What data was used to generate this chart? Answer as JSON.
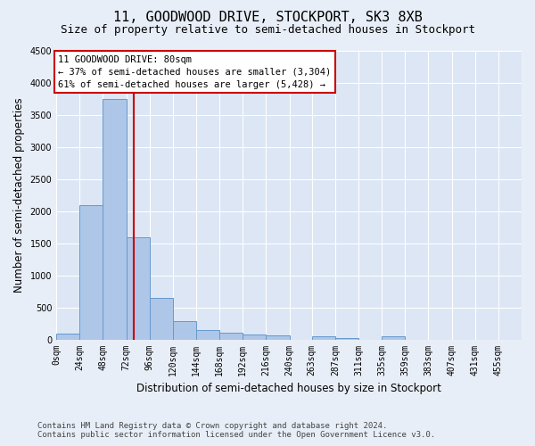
{
  "title": "11, GOODWOOD DRIVE, STOCKPORT, SK3 8XB",
  "subtitle": "Size of property relative to semi-detached houses in Stockport",
  "xlabel": "Distribution of semi-detached houses by size in Stockport",
  "ylabel": "Number of semi-detached properties",
  "footer_line1": "Contains HM Land Registry data © Crown copyright and database right 2024.",
  "footer_line2": "Contains public sector information licensed under the Open Government Licence v3.0.",
  "bar_edges": [
    0,
    24,
    48,
    72,
    96,
    120,
    144,
    168,
    192,
    216,
    240,
    263,
    287,
    311,
    335,
    359,
    383,
    407,
    431,
    455,
    479
  ],
  "bar_heights": [
    100,
    2100,
    3750,
    1600,
    650,
    290,
    150,
    110,
    80,
    65,
    0,
    55,
    30,
    0,
    50,
    0,
    0,
    0,
    0,
    0
  ],
  "bar_color": "#aec6e8",
  "bar_edgecolor": "#6699cc",
  "property_size": 80,
  "red_line_color": "#cc0000",
  "annotation_text_line1": "11 GOODWOOD DRIVE: 80sqm",
  "annotation_text_line2": "← 37% of semi-detached houses are smaller (3,304)",
  "annotation_text_line3": "61% of semi-detached houses are larger (5,428) →",
  "annotation_box_color": "#cc0000",
  "ylim": [
    0,
    4500
  ],
  "yticks": [
    0,
    500,
    1000,
    1500,
    2000,
    2500,
    3000,
    3500,
    4000,
    4500
  ],
  "bg_color": "#e8eef7",
  "plot_bg_color": "#dce6f5",
  "grid_color": "#ffffff",
  "title_fontsize": 11,
  "subtitle_fontsize": 9,
  "axis_label_fontsize": 8.5,
  "tick_fontsize": 7,
  "annotation_fontsize": 7.5,
  "footer_fontsize": 6.5
}
